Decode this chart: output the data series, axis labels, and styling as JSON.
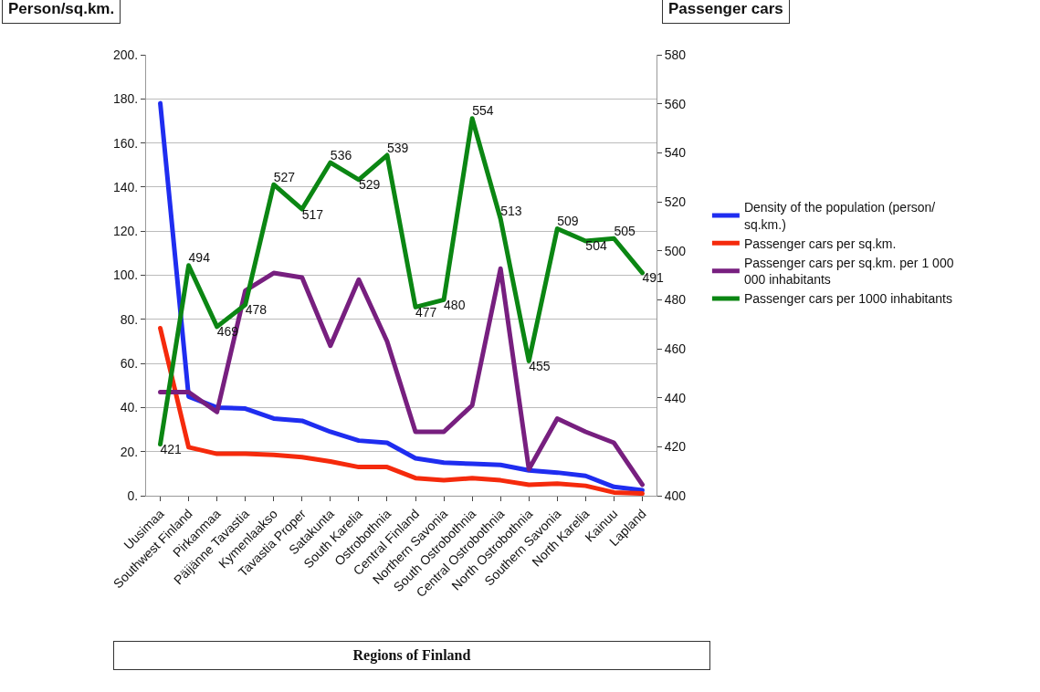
{
  "chart_data": {
    "type": "line",
    "xlabel": "Regions of Finland",
    "ylabel": "Person/sq.km.",
    "y2label": "Passenger cars",
    "categories": [
      "Uusimaa",
      "Southwest Finland",
      "Pirkanmaa",
      "Päijänne Tavastia",
      "Kymenlaakso",
      "Tavastia Proper",
      "Satakunta",
      "South Karelia",
      "Ostrobothnia",
      "Central Finland",
      "Northern Savonia",
      "South Ostrobothnia",
      "Central Ostrobothnia",
      "North Ostrobothnia",
      "Southern Savonia",
      "North Karelia",
      "Kainuu",
      "Lapland"
    ],
    "series": [
      {
        "name": "Density of the population (person/ sq.km.)",
        "color": "#1f2df0",
        "values": [
          178,
          45,
          40,
          39.5,
          35,
          34,
          29,
          25,
          24,
          17,
          15,
          14.5,
          14,
          11.5,
          10.5,
          9,
          4,
          2.5
        ]
      },
      {
        "name": "Passenger cars per sq.km.",
        "color": "#f52a0c",
        "values": [
          76,
          22,
          19,
          19,
          18.5,
          17.5,
          15.5,
          13,
          13,
          8,
          7,
          8,
          7,
          5,
          5.5,
          4.5,
          1.5,
          1
        ]
      },
      {
        "name": "Passenger cars per sq.km. per 1 000 000 inhabitants",
        "color": "#771f7f",
        "values": [
          47,
          47,
          38,
          93,
          101,
          99,
          68,
          98,
          70,
          29,
          29,
          41,
          103,
          12,
          35,
          29,
          24,
          5
        ]
      },
      {
        "name": "Passenger cars per 1000 inhabitants",
        "color": "#0b8613",
        "axis": "y2",
        "data_labels": true,
        "values": [
          421,
          494,
          469,
          478,
          527,
          517,
          536,
          529,
          539,
          477,
          480,
          554,
          513,
          455,
          509,
          504,
          505,
          491
        ]
      }
    ],
    "ylim": [
      0,
      200
    ],
    "yticks": [
      {
        "value": 0,
        "label": "0."
      },
      {
        "value": 20,
        "label": "20."
      },
      {
        "value": 40,
        "label": "40."
      },
      {
        "value": 60,
        "label": "60."
      },
      {
        "value": 80,
        "label": "80."
      },
      {
        "value": 100,
        "label": "100."
      },
      {
        "value": 120,
        "label": "120."
      },
      {
        "value": 140,
        "label": "140."
      },
      {
        "value": 160,
        "label": "160."
      },
      {
        "value": 180,
        "label": "180."
      },
      {
        "value": 200,
        "label": "200."
      }
    ],
    "y2lim": [
      400,
      580
    ],
    "y2ticks": [
      400,
      420,
      440,
      460,
      480,
      500,
      520,
      540,
      560,
      580
    ],
    "grid": "y",
    "legend": "right",
    "marker": "none",
    "line_style": "solid"
  }
}
